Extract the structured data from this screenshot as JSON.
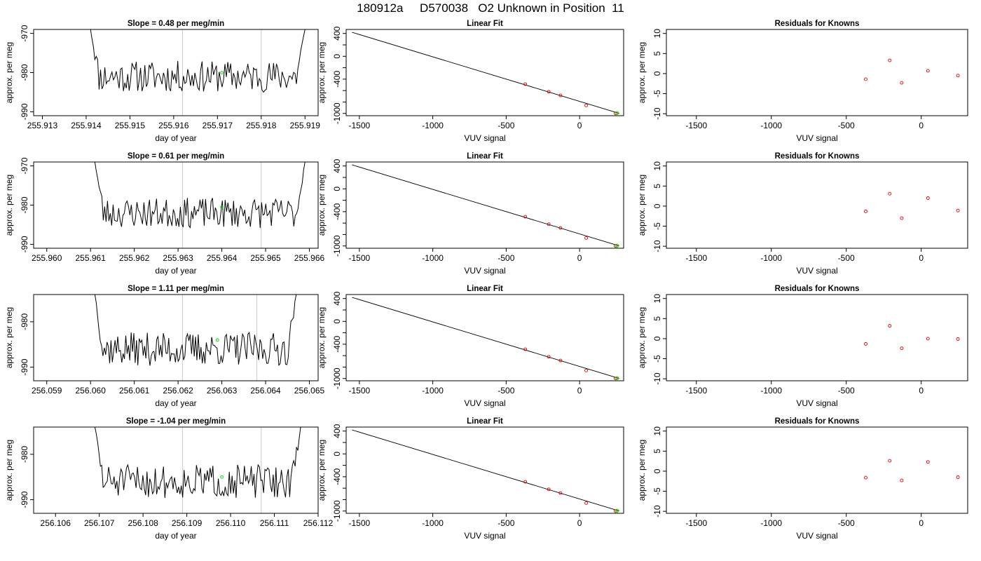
{
  "page_title": "180912a     D570038   O2 Unknown in Position  11",
  "colors": {
    "trace": "#000000",
    "marker_green": "#00dd00",
    "residual_red": "#dd0000",
    "gridline": "#c8c8c8"
  },
  "chart_data": [
    {
      "type": "line",
      "panel": "time-series",
      "row": 1,
      "title": "Slope =  0.48  per meg/min",
      "xlabel": "day of year",
      "ylabel": "approx. per meg",
      "xlim": [
        255.9128,
        255.9193
      ],
      "ylim": [
        -991,
        -969
      ],
      "x_ticks": [
        255.913,
        255.914,
        255.915,
        255.916,
        255.917,
        255.918,
        255.919
      ],
      "x_tick_labels": [
        "255.913",
        "255.914",
        "255.915",
        "255.916",
        "255.917",
        "255.918",
        "255.919"
      ],
      "y_ticks": [
        -970,
        -980,
        -990
      ],
      "y_tick_labels": [
        "-970",
        "-980",
        "-990"
      ],
      "vlines": [
        255.9162,
        255.918
      ],
      "trace": {
        "x_start": 255.9141,
        "x_end": 255.919,
        "y_start": -969,
        "y_end": -969,
        "base": -981,
        "noise": 2.5,
        "n": 150,
        "seed": 11
      },
      "marker": {
        "x": 255.9171,
        "y": -980
      }
    },
    {
      "type": "scatter",
      "panel": "linear-fit",
      "row": 1,
      "title": "Linear Fit",
      "xlabel": "VUV signal",
      "ylabel": "approx. per meg",
      "xlim": [
        -1590,
        300
      ],
      "ylim": [
        -1040,
        470
      ],
      "x_ticks": [
        -1500,
        -1000,
        -500,
        0
      ],
      "x_tick_labels": [
        "-1500",
        "-1000",
        "-500",
        "0"
      ],
      "y_ticks": [
        400,
        0,
        -400,
        -1000
      ],
      "y_tick_labels": [
        "400",
        "0",
        "-400",
        "-1000"
      ],
      "y_minor_ticks": [
        200,
        -200,
        -600,
        -800
      ],
      "fit_line": {
        "x": [
          -1550,
          270
        ],
        "y": [
          420,
          -1000
        ]
      },
      "points": {
        "x": [
          -370,
          -210,
          -130,
          45,
          245
        ],
        "y": [
          -488,
          -620,
          -685,
          -860,
          -1000
        ]
      },
      "unknown_point": {
        "x": 255,
        "y": -995
      }
    },
    {
      "type": "scatter",
      "panel": "residuals",
      "row": 1,
      "title": "Residuals for Knowns",
      "xlabel": "VUV signal",
      "ylabel": "approx. per meg",
      "xlim": [
        -1700,
        310
      ],
      "ylim": [
        -10.5,
        11
      ],
      "x_ticks": [
        -1500,
        -1000,
        -500,
        0
      ],
      "x_tick_labels": [
        "-1500",
        "-1000",
        "-500",
        "0"
      ],
      "y_ticks": [
        10,
        5,
        0,
        -5,
        -10
      ],
      "y_tick_labels": [
        "10",
        "5",
        "0",
        "-5",
        "-10"
      ],
      "points": {
        "x": [
          -370,
          -210,
          -130,
          45,
          245
        ],
        "y": [
          -1.4,
          3.3,
          -2.3,
          0.7,
          -0.5
        ]
      }
    },
    {
      "type": "line",
      "panel": "time-series",
      "row": 2,
      "title": "Slope =  0.61  per meg/min",
      "xlabel": "day of year",
      "ylabel": "approx. per meg",
      "xlim": [
        255.9597,
        255.9662
      ],
      "ylim": [
        -991,
        -969
      ],
      "x_ticks": [
        255.96,
        255.961,
        255.962,
        255.963,
        255.964,
        255.965,
        255.966
      ],
      "x_tick_labels": [
        "255.960",
        "255.961",
        "255.962",
        "255.963",
        "255.964",
        "255.965",
        "255.966"
      ],
      "y_ticks": [
        -970,
        -980,
        -990
      ],
      "y_tick_labels": [
        "-970",
        "-980",
        "-990"
      ],
      "vlines": [
        255.9631,
        255.9649
      ],
      "trace": {
        "x_start": 255.9611,
        "x_end": 255.9659,
        "y_start": -969,
        "y_end": -969,
        "base": -982,
        "noise": 2.4,
        "n": 150,
        "seed": 23
      },
      "marker": {
        "x": 255.964,
        "y": -980.5
      }
    },
    {
      "type": "scatter",
      "panel": "linear-fit",
      "row": 2,
      "title": "Linear Fit",
      "xlabel": "VUV signal",
      "ylabel": "approx. per meg",
      "xlim": [
        -1590,
        300
      ],
      "ylim": [
        -1040,
        470
      ],
      "x_ticks": [
        -1500,
        -1000,
        -500,
        0
      ],
      "x_tick_labels": [
        "-1500",
        "-1000",
        "-500",
        "0"
      ],
      "y_ticks": [
        400,
        0,
        -400,
        -1000
      ],
      "y_tick_labels": [
        "400",
        "0",
        "-400",
        "-1000"
      ],
      "y_minor_ticks": [
        200,
        -200,
        -600,
        -800
      ],
      "fit_line": {
        "x": [
          -1550,
          270
        ],
        "y": [
          420,
          -1000
        ]
      },
      "points": {
        "x": [
          -370,
          -210,
          -130,
          45,
          245
        ],
        "y": [
          -488,
          -620,
          -685,
          -860,
          -1000
        ]
      },
      "unknown_point": {
        "x": 255,
        "y": -995
      }
    },
    {
      "type": "scatter",
      "panel": "residuals",
      "row": 2,
      "title": "Residuals for Knowns",
      "xlabel": "VUV signal",
      "ylabel": "approx. per meg",
      "xlim": [
        -1700,
        310
      ],
      "ylim": [
        -10.5,
        11
      ],
      "x_ticks": [
        -1500,
        -1000,
        -500,
        0
      ],
      "x_tick_labels": [
        "-1500",
        "-1000",
        "-500",
        "0"
      ],
      "y_ticks": [
        10,
        5,
        0,
        -5,
        -10
      ],
      "y_tick_labels": [
        "10",
        "5",
        "0",
        "-5",
        "-10"
      ],
      "points": {
        "x": [
          -370,
          -210,
          -130,
          45,
          245
        ],
        "y": [
          -1.3,
          3.1,
          -3.0,
          2.0,
          -1.1
        ]
      }
    },
    {
      "type": "line",
      "panel": "time-series",
      "row": 3,
      "title": "Slope =  1.11  per meg/min",
      "xlabel": "day of year",
      "ylabel": "approx. per meg",
      "xlim": [
        256.0587,
        256.0652
      ],
      "ylim": [
        -993,
        -974
      ],
      "x_ticks": [
        256.059,
        256.06,
        256.061,
        256.062,
        256.063,
        256.064,
        256.065
      ],
      "x_tick_labels": [
        "256.059",
        "256.060",
        "256.061",
        "256.062",
        "256.063",
        "256.064",
        "256.065"
      ],
      "y_ticks": [
        -980,
        -990
      ],
      "y_tick_labels": [
        "-980",
        "-990"
      ],
      "vlines": [
        256.0621,
        256.0638
      ],
      "trace": {
        "x_start": 256.0601,
        "x_end": 256.0647,
        "y_start": -974,
        "y_end": -974,
        "base": -986,
        "noise": 2.3,
        "n": 150,
        "seed": 37
      },
      "marker": {
        "x": 256.0629,
        "y": -984
      }
    },
    {
      "type": "scatter",
      "panel": "linear-fit",
      "row": 3,
      "title": "Linear Fit",
      "xlabel": "VUV signal",
      "ylabel": "approx. per meg",
      "xlim": [
        -1590,
        300
      ],
      "ylim": [
        -1040,
        470
      ],
      "x_ticks": [
        -1500,
        -1000,
        -500,
        0
      ],
      "x_tick_labels": [
        "-1500",
        "-1000",
        "-500",
        "0"
      ],
      "y_ticks": [
        400,
        0,
        -400,
        -1000
      ],
      "y_tick_labels": [
        "400",
        "0",
        "-400",
        "-1000"
      ],
      "y_minor_ticks": [
        200,
        -200,
        -600,
        -800
      ],
      "fit_line": {
        "x": [
          -1550,
          270
        ],
        "y": [
          420,
          -1000
        ]
      },
      "points": {
        "x": [
          -370,
          -210,
          -130,
          45,
          245
        ],
        "y": [
          -488,
          -620,
          -685,
          -860,
          -1000
        ]
      },
      "unknown_point": {
        "x": 255,
        "y": -995
      }
    },
    {
      "type": "scatter",
      "panel": "residuals",
      "row": 3,
      "title": "Residuals for Knowns",
      "xlabel": "VUV signal",
      "ylabel": "approx. per meg",
      "xlim": [
        -1700,
        310
      ],
      "ylim": [
        -10.5,
        11
      ],
      "x_ticks": [
        -1500,
        -1000,
        -500,
        0
      ],
      "x_tick_labels": [
        "-1500",
        "-1000",
        "-500",
        "0"
      ],
      "y_ticks": [
        10,
        5,
        0,
        -5,
        -10
      ],
      "y_tick_labels": [
        "10",
        "5",
        "0",
        "-5",
        "-10"
      ],
      "points": {
        "x": [
          -370,
          -210,
          -130,
          45,
          245
        ],
        "y": [
          -1.3,
          3.2,
          -2.4,
          0.0,
          -0.1
        ]
      }
    },
    {
      "type": "line",
      "panel": "time-series",
      "row": 4,
      "title": "Slope =  -1.04  per meg/min",
      "xlabel": "day of year",
      "ylabel": "approx. per meg",
      "xlim": [
        256.1055,
        256.112
      ],
      "ylim": [
        -993,
        -974
      ],
      "x_ticks": [
        256.106,
        256.107,
        256.108,
        256.109,
        256.11,
        256.111,
        256.112
      ],
      "x_tick_labels": [
        "256.106",
        "256.107",
        "256.108",
        "256.109",
        "256.110",
        "256.111",
        "256.112"
      ],
      "y_ticks": [
        -980,
        -990
      ],
      "y_tick_labels": [
        "-980",
        "-990"
      ],
      "vlines": [
        256.1089,
        256.1107
      ],
      "trace": {
        "x_start": 256.1069,
        "x_end": 256.1116,
        "y_start": -974,
        "y_end": -974,
        "base": -986,
        "noise": 2.3,
        "n": 150,
        "seed": 51
      },
      "marker": {
        "x": 256.1098,
        "y": -985
      }
    },
    {
      "type": "scatter",
      "panel": "linear-fit",
      "row": 4,
      "title": "Linear Fit",
      "xlabel": "VUV signal",
      "ylabel": "approx. per meg",
      "xlim": [
        -1590,
        300
      ],
      "ylim": [
        -1040,
        470
      ],
      "x_ticks": [
        -1500,
        -1000,
        -500,
        0
      ],
      "x_tick_labels": [
        "-1500",
        "-1000",
        "-500",
        "0"
      ],
      "y_ticks": [
        400,
        0,
        -400,
        -1000
      ],
      "y_tick_labels": [
        "400",
        "0",
        "-400",
        "-1000"
      ],
      "y_minor_ticks": [
        200,
        -200,
        -600,
        -800
      ],
      "fit_line": {
        "x": [
          -1550,
          270
        ],
        "y": [
          420,
          -1000
        ]
      },
      "points": {
        "x": [
          -370,
          -210,
          -130,
          45,
          245
        ],
        "y": [
          -488,
          -620,
          -685,
          -860,
          -1000
        ]
      },
      "unknown_point": {
        "x": 255,
        "y": -995
      }
    },
    {
      "type": "scatter",
      "panel": "residuals",
      "row": 4,
      "title": "Residuals for Knowns",
      "xlabel": "VUV signal",
      "ylabel": "approx. per meg",
      "xlim": [
        -1700,
        310
      ],
      "ylim": [
        -10.5,
        11
      ],
      "x_ticks": [
        -1500,
        -1000,
        -500,
        0
      ],
      "x_tick_labels": [
        "-1500",
        "-1000",
        "-500",
        "0"
      ],
      "y_ticks": [
        10,
        5,
        0,
        -5,
        -10
      ],
      "y_tick_labels": [
        "10",
        "5",
        "0",
        "-5",
        "-10"
      ],
      "points": {
        "x": [
          -370,
          -210,
          -130,
          45,
          245
        ],
        "y": [
          -1.6,
          2.6,
          -2.3,
          2.3,
          -1.5
        ]
      }
    }
  ]
}
